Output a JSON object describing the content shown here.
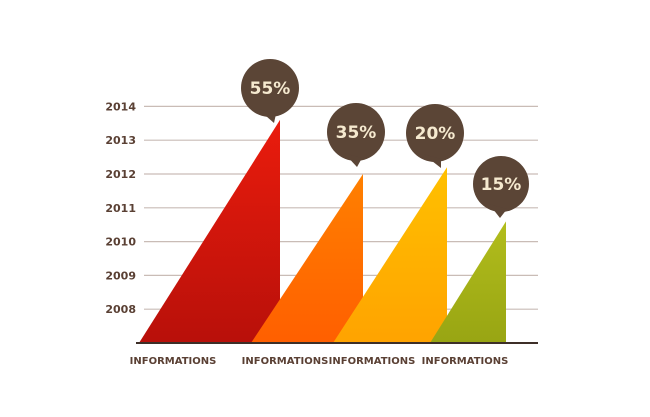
{
  "chart_data": {
    "type": "area",
    "title": "",
    "xlabel": "",
    "ylabel": "",
    "y_ticks": [
      "2008",
      "2009",
      "2010",
      "2011",
      "2012",
      "2013",
      "2014"
    ],
    "ylim": [
      2007,
      2014
    ],
    "grid": true,
    "categories": [
      "INFORMATIONS",
      "INFORMATIONS",
      "INFORMATIONS",
      "INFORMATIONS"
    ],
    "peak_values": [
      2013.6,
      2012.0,
      2012.2,
      2010.6
    ],
    "labels": [
      "55%",
      "35%",
      "20%",
      "15%"
    ],
    "colors": {
      "series": [
        "#cc1408",
        "#ff6e00",
        "#ffb300",
        "#a3b018"
      ],
      "bubble": "#5b4536",
      "bubble_text": "#f5e9cf",
      "axis": "#3d2f28",
      "grid": "#c9bcb6",
      "text": "#5a4034"
    }
  }
}
